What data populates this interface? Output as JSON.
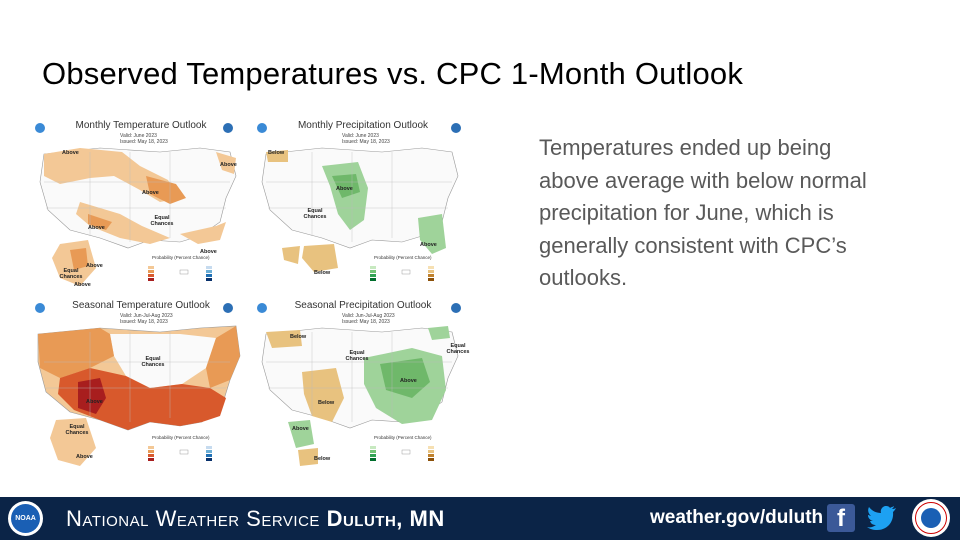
{
  "title": "Observed Temperatures vs. CPC 1-Month Outlook",
  "body_text": "Temperatures ended up being above average with below normal precipitation for June, which is generally consistent with CPC’s outlooks.",
  "panels": [
    {
      "title": "Monthly Temperature Outlook",
      "valid": "Valid: June 2023",
      "issued": "Issued: May 18, 2023",
      "labels": [
        "Above",
        "Above",
        "Above",
        "Equal Chances",
        "Above",
        "Above",
        "Above",
        "Equal Chances",
        "Above"
      ],
      "legend_title": "Probability (Percent Chance)"
    },
    {
      "title": "Monthly Precipitation Outlook",
      "valid": "Valid: June 2023",
      "issued": "Issued: May 18, 2023",
      "labels": [
        "Below",
        "Above",
        "Equal Chances",
        "Above",
        "Below"
      ],
      "legend_title": "Probability (Percent Chance)"
    },
    {
      "title": "Seasonal Temperature Outlook",
      "valid": "Valid: Jun-Jul-Aug 2023",
      "issued": "Issued: May 18, 2023",
      "labels": [
        "Equal Chances",
        "Above",
        "Equal Chances",
        "Above"
      ],
      "legend_title": "Probability (Percent Chance)"
    },
    {
      "title": "Seasonal Precipitation Outlook",
      "valid": "Valid: Jun-Jul-Aug 2023",
      "issued": "Issued: May 18, 2023",
      "labels": [
        "Below",
        "Equal Chances",
        "Equal Chances",
        "Above",
        "Below",
        "Above",
        "Below"
      ],
      "legend_title": "Probability (Percent Chance)"
    }
  ],
  "footer": {
    "logo_text": "NOAA",
    "agency": "National Weather Service",
    "office": "Duluth, MN",
    "url": "weather.gov/duluth",
    "facebook_icon": "facebook-icon",
    "twitter_icon": "twitter-icon",
    "seal_icon": "nws-seal-icon"
  },
  "colors": {
    "footer_bg": "#0b2447",
    "temp_above_light": "#f3c896",
    "temp_above_mid": "#e89a55",
    "temp_above_strong": "#d8592c",
    "temp_above_max": "#a81e1e",
    "precip_above": "#9fd39a",
    "precip_below": "#e8c27f"
  }
}
